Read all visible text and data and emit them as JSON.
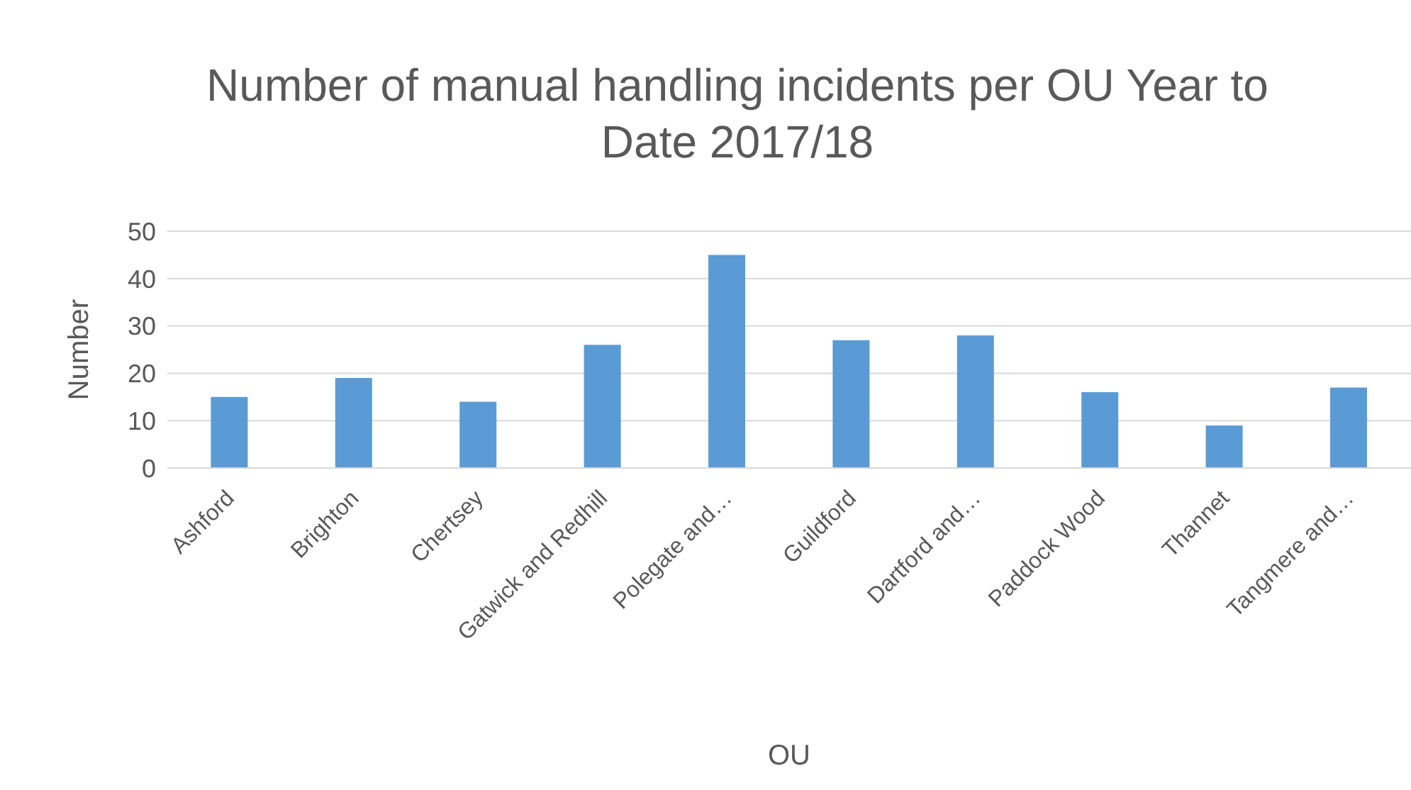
{
  "chart_data": {
    "type": "bar",
    "title": "Number of manual handling incidents per OU Year to Date 2017/18",
    "xlabel": "OU",
    "ylabel": "Number",
    "categories": [
      "Ashford",
      "Brighton",
      "Chertsey",
      "Gatwick and Redhill",
      "Polegate and…",
      "Guildford",
      "Dartford and…",
      "Paddock Wood",
      "Thannet",
      "Tangmere and…"
    ],
    "values": [
      15,
      19,
      14,
      26,
      45,
      27,
      28,
      16,
      9,
      17
    ],
    "color": "#5b9bd5",
    "ylim": [
      0,
      50
    ],
    "yticks": [
      0,
      10,
      20,
      30,
      40,
      50
    ],
    "grid": "y"
  }
}
